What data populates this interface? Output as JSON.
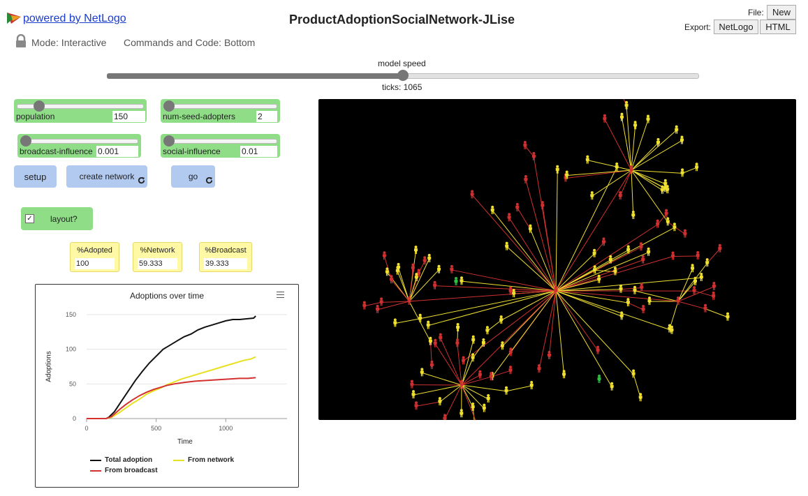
{
  "header": {
    "link_text": "powered by NetLogo",
    "title": "ProductAdoptionSocialNetwork-JLise",
    "file_label": "File:",
    "new_label": "New",
    "export_label": "Export:",
    "export_netlogo": "NetLogo",
    "export_html": "HTML",
    "mode": "Mode: Interactive",
    "commands": "Commands and Code: Bottom"
  },
  "speed": {
    "label": "model speed",
    "ticks": "ticks: 1065",
    "value": 0.5
  },
  "sliders": [
    {
      "label": "population",
      "value": "150",
      "fraction": 0.08
    },
    {
      "label": "num-seed-adopters",
      "value": "2",
      "fraction": 0.02
    },
    {
      "label": "broadcast-influence",
      "value": "0.001",
      "fraction": 0.01
    },
    {
      "label": "social-influence",
      "value": "0.01",
      "fraction": 0.01
    }
  ],
  "buttons": {
    "setup": "setup",
    "create_network": "create network",
    "go": "go"
  },
  "switch": {
    "label": "layout?",
    "on": true
  },
  "monitors": [
    {
      "label": "%Adopted",
      "value": "100"
    },
    {
      "label": "%Network",
      "value": "59.333"
    },
    {
      "label": "%Broadcast",
      "value": "39.333"
    }
  ],
  "colors": {
    "total": "#111111",
    "network": "#e8e020",
    "broadcast": "#d33030",
    "slider_bg": "#90dd88",
    "button_bg": "#b3caf0",
    "monitor_bg": "#fff9a6"
  },
  "chart_data": {
    "type": "line",
    "title": "Adoptions over time",
    "xlabel": "Time",
    "ylabel": "Adoptions",
    "xlim": [
      0,
      1440
    ],
    "ylim": [
      0,
      150
    ],
    "xticks": [
      0,
      500,
      1000
    ],
    "yticks": [
      0,
      50,
      100,
      150
    ],
    "grid": true,
    "legend_position": "bottom",
    "series": [
      {
        "name": "Total adoption",
        "color": "#111111",
        "points": [
          [
            0,
            0
          ],
          [
            140,
            0
          ],
          [
            160,
            2
          ],
          [
            200,
            10
          ],
          [
            250,
            25
          ],
          [
            300,
            40
          ],
          [
            350,
            55
          ],
          [
            400,
            68
          ],
          [
            450,
            80
          ],
          [
            500,
            90
          ],
          [
            550,
            100
          ],
          [
            600,
            106
          ],
          [
            650,
            112
          ],
          [
            700,
            118
          ],
          [
            750,
            122
          ],
          [
            800,
            128
          ],
          [
            850,
            132
          ],
          [
            900,
            135
          ],
          [
            950,
            138
          ],
          [
            1000,
            141
          ],
          [
            1050,
            143
          ],
          [
            1100,
            143
          ],
          [
            1150,
            144
          ],
          [
            1200,
            145
          ],
          [
            1215,
            148
          ]
        ]
      },
      {
        "name": "From network",
        "color": "#e8e020",
        "points": [
          [
            0,
            0
          ],
          [
            140,
            0
          ],
          [
            180,
            2
          ],
          [
            230,
            8
          ],
          [
            280,
            15
          ],
          [
            330,
            22
          ],
          [
            380,
            28
          ],
          [
            430,
            35
          ],
          [
            480,
            40
          ],
          [
            530,
            44
          ],
          [
            580,
            49
          ],
          [
            630,
            53
          ],
          [
            680,
            57
          ],
          [
            730,
            60
          ],
          [
            780,
            63
          ],
          [
            830,
            66
          ],
          [
            880,
            69
          ],
          [
            930,
            72
          ],
          [
            980,
            75
          ],
          [
            1030,
            78
          ],
          [
            1080,
            81
          ],
          [
            1130,
            84
          ],
          [
            1180,
            86
          ],
          [
            1215,
            89
          ]
        ]
      },
      {
        "name": "From broadcast",
        "color": "#d33030",
        "points": [
          [
            0,
            0
          ],
          [
            140,
            0
          ],
          [
            180,
            3
          ],
          [
            230,
            12
          ],
          [
            280,
            20
          ],
          [
            330,
            27
          ],
          [
            380,
            33
          ],
          [
            430,
            38
          ],
          [
            480,
            42
          ],
          [
            530,
            45
          ],
          [
            580,
            48
          ],
          [
            630,
            50
          ],
          [
            700,
            52
          ],
          [
            780,
            54
          ],
          [
            860,
            55
          ],
          [
            940,
            56
          ],
          [
            1020,
            57
          ],
          [
            1100,
            58
          ],
          [
            1160,
            58
          ],
          [
            1215,
            59
          ]
        ]
      }
    ]
  },
  "network": {
    "hubs": [
      {
        "name": "center",
        "children": 44
      },
      {
        "name": "top-right",
        "children": 20
      },
      {
        "name": "bottom-left",
        "children": 18
      },
      {
        "name": "left",
        "children": 13
      },
      {
        "name": "right",
        "children": 8
      }
    ]
  }
}
